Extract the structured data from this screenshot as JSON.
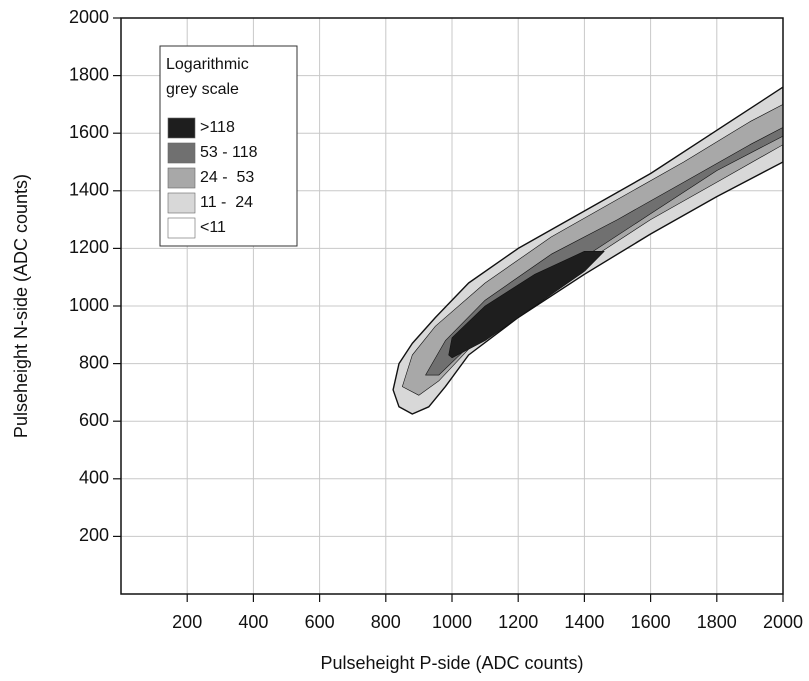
{
  "chart_data": {
    "type": "contour",
    "xlabel": "Pulseheight P-side (ADC counts)",
    "ylabel": "Pulseheight N-side (ADC counts)",
    "legend_title": "Logarithmic grey scale",
    "legend": "upper left",
    "grid": true,
    "xlim": [
      0,
      2000
    ],
    "ylim": [
      0,
      2000
    ],
    "xticks": [
      200,
      400,
      600,
      800,
      1000,
      1200,
      1400,
      1600,
      1800,
      2000
    ],
    "yticks": [
      200,
      400,
      600,
      800,
      1000,
      1200,
      1400,
      1600,
      1800,
      2000
    ],
    "series": [
      {
        "name": ">118",
        "color": "#1e1e1e",
        "x": [
          990,
          1000,
          1100,
          1250,
          1400,
          1460,
          1400,
          1250,
          1100,
          1000
        ],
        "y": [
          830,
          890,
          1000,
          1110,
          1190,
          1190,
          1120,
          1000,
          880,
          820
        ]
      },
      {
        "name": "53 - 118",
        "color": "#707070",
        "x": [
          920,
          980,
          1100,
          1300,
          1500,
          1700,
          1900,
          2000,
          2000,
          1800,
          1600,
          1400,
          1200,
          1050,
          960
        ],
        "y": [
          760,
          880,
          1020,
          1180,
          1300,
          1430,
          1560,
          1620,
          1590,
          1470,
          1320,
          1170,
          1010,
          860,
          760
        ]
      },
      {
        "name": "24 -  53",
        "color": "#a8a8a8",
        "x": [
          850,
          880,
          950,
          1100,
          1300,
          1500,
          1700,
          1900,
          2000,
          2000,
          1800,
          1600,
          1400,
          1200,
          1050,
          960,
          900
        ],
        "y": [
          720,
          830,
          930,
          1080,
          1240,
          1370,
          1500,
          1640,
          1700,
          1560,
          1430,
          1300,
          1150,
          990,
          850,
          740,
          690
        ]
      },
      {
        "name": "11 -  24",
        "color": "#d8d8d8",
        "x": [
          822,
          840,
          880,
          950,
          1050,
          1200,
          1400,
          1600,
          1800,
          2000,
          2000,
          1800,
          1600,
          1400,
          1200,
          1050,
          980,
          930,
          880,
          840
        ],
        "y": [
          709,
          800,
          870,
          960,
          1080,
          1200,
          1330,
          1460,
          1610,
          1760,
          1500,
          1380,
          1250,
          1110,
          960,
          830,
          720,
          650,
          625,
          650
        ]
      },
      {
        "name": "<11",
        "color": "#ffffff",
        "x": [],
        "y": []
      }
    ]
  }
}
